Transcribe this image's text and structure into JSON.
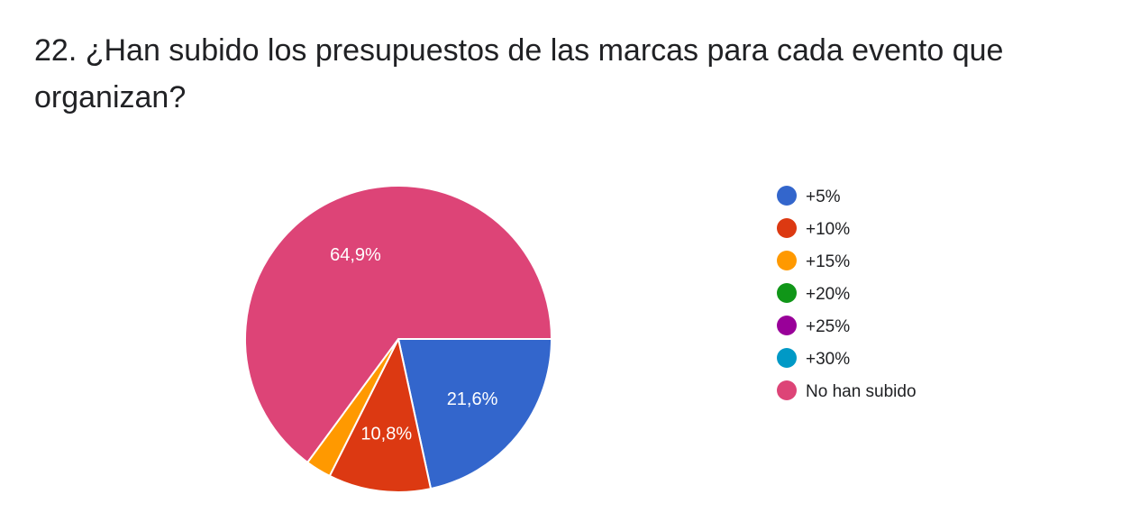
{
  "question": {
    "title": "22. ¿Han subido los presupuestos de las marcas para cada evento que organizan?"
  },
  "chart_data": {
    "type": "pie",
    "title": "22. ¿Han subido los presupuestos de las marcas para cada evento que organizan?",
    "slices": [
      {
        "label": "+5%",
        "value": 21.6,
        "display": "21,6%",
        "color": "#3366cc"
      },
      {
        "label": "+10%",
        "value": 10.8,
        "display": "10,8%",
        "color": "#dc3912"
      },
      {
        "label": "+15%",
        "value": 2.7,
        "display": "",
        "color": "#ff9900"
      },
      {
        "label": "+20%",
        "value": 0,
        "display": "",
        "color": "#109618"
      },
      {
        "label": "+25%",
        "value": 0,
        "display": "",
        "color": "#990099"
      },
      {
        "label": "+30%",
        "value": 0,
        "display": "",
        "color": "#0099c6"
      },
      {
        "label": "No han subido",
        "value": 64.9,
        "display": "64,9%",
        "color": "#dd4477"
      }
    ],
    "legend_position": "right"
  }
}
